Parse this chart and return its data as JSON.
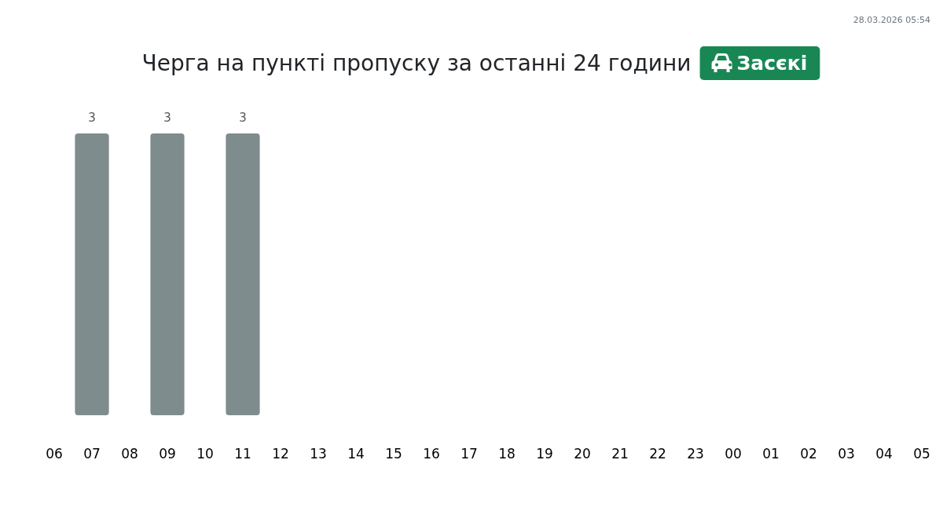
{
  "chart_data": {
    "type": "bar",
    "title": "Черга на пункті пропуску за останні 24 години",
    "subtitle": "Засєкі",
    "annotations": [
      "28.03.2026 05:54"
    ],
    "categories": [
      "06",
      "07",
      "08",
      "09",
      "10",
      "11",
      "12",
      "13",
      "14",
      "15",
      "16",
      "17",
      "18",
      "19",
      "20",
      "21",
      "22",
      "23",
      "00",
      "01",
      "02",
      "03",
      "04",
      "05"
    ],
    "values": [
      null,
      3,
      null,
      3,
      null,
      3,
      null,
      null,
      null,
      null,
      null,
      null,
      null,
      null,
      null,
      null,
      null,
      null,
      null,
      null,
      null,
      null,
      null,
      null
    ],
    "color": "#7f8c8d",
    "data_labels": true
  }
}
